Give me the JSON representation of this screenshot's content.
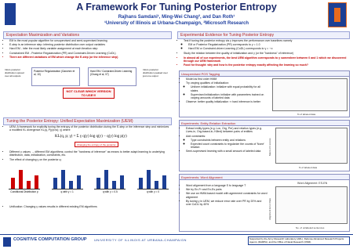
{
  "header": {
    "title": "A Framework For Tuning Posterior Entropy",
    "authors": "Rajhans Samdani¹, Ming-Wei Chang², and Dan Roth¹",
    "affiliations": "¹University of Illinois at Urbana-Champaign, ²Microsoft Research"
  },
  "em_section": {
    "title": "Expectation Maximization and Variations",
    "bullets": [
      "EM is the most popular algorithm for unsupervised and semi-supervised learning",
      "E-step is an inference step: inferring posterior distribution over output variables",
      "Hard EM - infer the most likely variable assignment at each iteration step",
      "Constrained EM - Posterior Regularization (PR) and Constraint-Driven Learning (CoDL)",
      "There are different variations of EM which change the E-step (or the inference step)"
    ],
    "diagram": {
      "left_note": "Infers posterior distribution spread over all outputs",
      "box_1": "Posterior Regularization (Ganchev et al, 10)",
      "box_2": "Hard EM / Constraint-Driven Learning (Chang et al, 07)",
      "right_note": "Infers posterior distribution peaked over just one output",
      "warning": "NOT CLEAR WHICH VERSION TO USE!!!"
    }
  },
  "uem_section": {
    "title": "Tuning the Posterior Entropy: Unified Expectation Maximization (UEM)",
    "intro": "UEM: A framework for explicitly tuning the entropy of the posterior distribution during the E-step or the inference step and minimizes a modified KL divergence KL(q, P(y|x;w); γ) where",
    "formula": "KL(q, p; γ) = Σ γ q(y) log q(y) − q(y) log p(y)",
    "formula_note": "Changing the entropy of the posterior",
    "bullets": [
      "Different γ values → different EM algorithms; control the \"hardness of inference\" as means to better adapt learning to underlying distribution, data, initialization, constraints, etc.",
      "The effect of changing γ on the posterior q:"
    ],
    "panels": [
      "Conditional Distribution p",
      "q with γ = 1",
      "q with γ = 0.5",
      "q with γ = 0"
    ],
    "unification": "Unification: Changing γ values results in different existing EM algorithms"
  },
  "experiments": {
    "title": "Experimental Evidence for Tuning Posterior Entropy",
    "bullets": [
      "Test if tuning the posterior entropy via γ improves the performance over baselines namely",
      "EM or Posterior Regularization (PR) corresponds to γ = 1.0",
      "Hard EM or Constraint-driven Learning (CoDL) corresponds to γ = −∞",
      "Study the relation between the quality of initialization and γ (or the \"hardness\" of inference)"
    ],
    "finding": "In almost all of our experiments, the best UEM algorithm corresponds to γ somewhere between 0 and 1 which we discovered through our UEM framework",
    "food": "Food for thought: why and how is the posterior entropy exactly affecting the learning so much?"
  },
  "pos": {
    "title": "Unsupervised POS Tagging",
    "bullets": [
      "Model as first order HMM",
      "Try varying qualities of initialization:",
      "Uniform initialization: initialize with equal probability for all states",
      "Supervised initialization: initialize with parameters trained on varying amounts of labeled data",
      "Observe: better quality initialization ⇒ hard inference is better"
    ],
    "x_label": "% of labeled data"
  },
  "er": {
    "title": "Experiments: Entity-Relation Extraction",
    "bullets": [
      "Extract entity types (e.g. Loc, Org, Per) and relation types (e.g. Lives-in, Org-based-in, Killed) between pairs of entities",
      "Add constraints:",
      "Type constraints between entity and relations",
      "Expected count constraints to regularize the counts of 'None' relation",
      "Semi-supervised learning with a small amount of labeled data"
    ],
    "y_label": "Macro-F1 scores",
    "x_label": "% of labeled data"
  },
  "wa": {
    "title": "Experiments: Word Alignment",
    "bullets": [
      "Word alignment from a language S to language T",
      "We try En-Fr and En-Es pairs",
      "We use an HMM-based model with agreement constraints for word alignment",
      "By tuning γ in UEM, we reduce error rate over PR by 20% and over CoDL by 40%"
    ],
    "chart_title": "Word Alignment: ES-EN",
    "y_label": "Alignment Error Rate",
    "x_label": "No. of unlabeled sentences"
  },
  "footer": {
    "group": "Cognitive Computation Group",
    "university": "University of Illinois at Urbana-Champaign",
    "funding": "Supported by the Army Research Laboratory (ARL), Defense Advanced Research Projects Agency (DARPA), and the Office of Naval Research (ONR)."
  }
}
